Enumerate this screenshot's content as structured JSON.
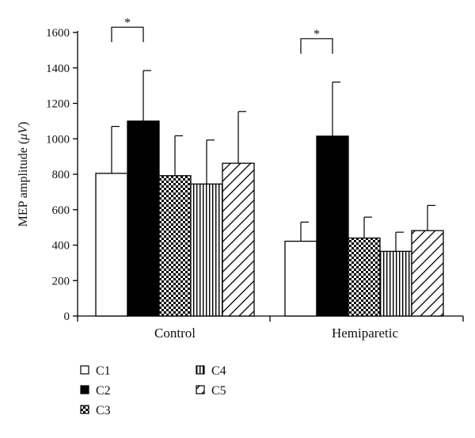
{
  "chart_data": {
    "type": "bar",
    "categories": [
      "Control",
      "Hemiparetic"
    ],
    "series": [
      {
        "name": "C1",
        "values": [
          805,
          422
        ],
        "errors": [
          265,
          108
        ],
        "pattern": "white"
      },
      {
        "name": "C2",
        "values": [
          1100,
          1015
        ],
        "errors": [
          285,
          305
        ],
        "pattern": "black"
      },
      {
        "name": "C3",
        "values": [
          792,
          440
        ],
        "errors": [
          225,
          118
        ],
        "pattern": "checker"
      },
      {
        "name": "C4",
        "values": [
          745,
          365
        ],
        "errors": [
          248,
          108
        ],
        "pattern": "vertical"
      },
      {
        "name": "C5",
        "values": [
          862,
          482
        ],
        "errors": [
          292,
          142
        ],
        "pattern": "diagonal"
      }
    ],
    "xlabel": "",
    "ylabel_prefix": "MEP amplitude (",
    "ylabel_mu": "μ",
    "ylabel_unit": "V",
    "ylabel_suffix": ")",
    "ylim": [
      0,
      1600
    ],
    "yticks": [
      "0",
      "200",
      "400",
      "600",
      "800",
      "1000",
      "1200",
      "1400",
      "1600"
    ],
    "grid": false,
    "legend_placement": "bottom-left",
    "significance": [
      {
        "group": "Control",
        "from": "C1",
        "to": "C2",
        "label": "*",
        "level": 1630
      },
      {
        "group": "Hemiparetic",
        "from": "C1",
        "to": "C2",
        "label": "*",
        "level": 1565
      }
    ]
  },
  "colors": {
    "ink": "#000000",
    "background": "#ffffff"
  }
}
